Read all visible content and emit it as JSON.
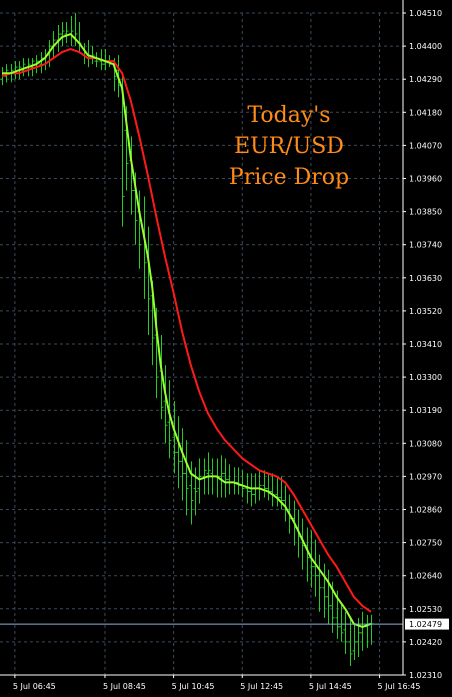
{
  "chart_data": {
    "type": "line",
    "title_lines": [
      "Today's",
      "EUR/USD",
      "Price Drop"
    ],
    "current_price_label": "1.02479",
    "y_tick_labels": [
      "1.04510",
      "1.04400",
      "1.04290",
      "1.04180",
      "1.04070",
      "1.03960",
      "1.03850",
      "1.03740",
      "1.03630",
      "1.03520",
      "1.03410",
      "1.03300",
      "1.03190",
      "1.03080",
      "1.02970",
      "1.02860",
      "1.02750",
      "1.02640",
      "1.02530",
      "1.02420",
      "1.02310"
    ],
    "x_tick_labels": [
      "5 Jul 06:45",
      "5 Jul 08:45",
      "5 Jul 10:45",
      "5 Jul 12:45",
      "5 Jul 14:45",
      "5 Jul 16:45"
    ],
    "ylim": [
      1.0231,
      1.0451
    ],
    "xlim": [
      0,
      93
    ],
    "x_ticks": [
      3,
      24,
      40,
      56,
      72,
      88
    ],
    "grid": true,
    "colors": {
      "background": "#000000",
      "grid": "#3a4a5a",
      "bars": "#22cc22",
      "fast_ma": "#99ff33",
      "slow_ma": "#ff1a1a",
      "title": "#ff8c1a",
      "axis_text": "#ffffff",
      "price_line": "#8ab4d8"
    },
    "bars": [
      [
        0,
        1.0433,
        1.0427,
        1.0429,
        1.0431
      ],
      [
        1,
        1.0434,
        1.0428,
        1.043,
        1.0432
      ],
      [
        2,
        1.0434,
        1.0428,
        1.0431,
        1.0432
      ],
      [
        3,
        1.0435,
        1.0429,
        1.0431,
        1.0433
      ],
      [
        4,
        1.0435,
        1.0429,
        1.0432,
        1.0433
      ],
      [
        5,
        1.0436,
        1.043,
        1.0432,
        1.0434
      ],
      [
        6,
        1.0436,
        1.043,
        1.0433,
        1.0434
      ],
      [
        7,
        1.0436,
        1.043,
        1.0433,
        1.0435
      ],
      [
        8,
        1.0437,
        1.0431,
        1.0434,
        1.0435
      ],
      [
        9,
        1.0438,
        1.0431,
        1.0434,
        1.0436
      ],
      [
        10,
        1.0439,
        1.0432,
        1.0436,
        1.0437
      ],
      [
        11,
        1.0442,
        1.0433,
        1.0437,
        1.044
      ],
      [
        12,
        1.0445,
        1.0436,
        1.044,
        1.0442
      ],
      [
        13,
        1.0447,
        1.0438,
        1.0442,
        1.0444
      ],
      [
        14,
        1.0448,
        1.044,
        1.0444,
        1.0445
      ],
      [
        15,
        1.0448,
        1.0441,
        1.0444,
        1.0445
      ],
      [
        16,
        1.045,
        1.044,
        1.0444,
        1.0445
      ],
      [
        17,
        1.0451,
        1.044,
        1.0443,
        1.0444
      ],
      [
        18,
        1.0448,
        1.0438,
        1.0441,
        1.0441
      ],
      [
        19,
        1.0441,
        1.0434,
        1.0437,
        1.0438
      ],
      [
        20,
        1.0442,
        1.0433,
        1.0436,
        1.0436
      ],
      [
        21,
        1.044,
        1.0434,
        1.0436,
        1.0437
      ],
      [
        22,
        1.0438,
        1.0433,
        1.0435,
        1.0435
      ],
      [
        23,
        1.0439,
        1.0432,
        1.0435,
        1.0434
      ],
      [
        24,
        1.0439,
        1.0432,
        1.0434,
        1.0435
      ],
      [
        25,
        1.0437,
        1.0433,
        1.0435,
        1.0434
      ],
      [
        26,
        1.0436,
        1.0425,
        1.0434,
        1.043
      ],
      [
        27,
        1.0437,
        1.0423,
        1.0432,
        1.0427
      ],
      [
        28,
        1.043,
        1.038,
        1.0427,
        1.039
      ],
      [
        29,
        1.042,
        1.0392,
        1.0412,
        1.0401
      ],
      [
        30,
        1.041,
        1.0384,
        1.0402,
        1.0392
      ],
      [
        31,
        1.0398,
        1.0374,
        1.0392,
        1.0382
      ],
      [
        32,
        1.0392,
        1.0366,
        1.0385,
        1.0374
      ],
      [
        33,
        1.039,
        1.0356,
        1.0378,
        1.0368
      ],
      [
        34,
        1.038,
        1.0344,
        1.037,
        1.0356
      ],
      [
        35,
        1.0362,
        1.0334,
        1.0357,
        1.0343
      ],
      [
        36,
        1.0353,
        1.0323,
        1.0344,
        1.033
      ],
      [
        37,
        1.0344,
        1.0316,
        1.0332,
        1.032
      ],
      [
        38,
        1.0334,
        1.0308,
        1.0322,
        1.0314
      ],
      [
        39,
        1.0329,
        1.0303,
        1.0315,
        1.0309
      ],
      [
        40,
        1.0322,
        1.0298,
        1.031,
        1.0305
      ],
      [
        41,
        1.0317,
        1.0293,
        1.0305,
        1.0302
      ],
      [
        42,
        1.0313,
        1.0289,
        1.0302,
        1.0298
      ],
      [
        43,
        1.0309,
        1.0284,
        1.0298,
        1.0293
      ],
      [
        44,
        1.0302,
        1.0281,
        1.0294,
        1.0289
      ],
      [
        45,
        1.03,
        1.0284,
        1.0293,
        1.0292
      ],
      [
        46,
        1.0303,
        1.0288,
        1.0293,
        1.0297
      ],
      [
        47,
        1.0303,
        1.0291,
        1.0297,
        1.0299
      ],
      [
        48,
        1.0305,
        1.0291,
        1.0298,
        1.0299
      ],
      [
        49,
        1.0303,
        1.0291,
        1.0298,
        1.0297
      ],
      [
        50,
        1.0303,
        1.029,
        1.0297,
        1.0297
      ],
      [
        51,
        1.0304,
        1.029,
        1.0297,
        1.0298
      ],
      [
        52,
        1.0303,
        1.029,
        1.0298,
        1.0296
      ],
      [
        53,
        1.0301,
        1.0291,
        1.0296,
        1.0295
      ],
      [
        54,
        1.03,
        1.0291,
        1.0295,
        1.0295
      ],
      [
        55,
        1.03,
        1.0291,
        1.0295,
        1.0294
      ],
      [
        56,
        1.0299,
        1.029,
        1.0294,
        1.0293
      ],
      [
        57,
        1.0298,
        1.0288,
        1.0293,
        1.0292
      ],
      [
        58,
        1.0298,
        1.0287,
        1.0292,
        1.0291
      ],
      [
        59,
        1.0298,
        1.0288,
        1.0291,
        1.0293
      ],
      [
        60,
        1.0299,
        1.0289,
        1.0293,
        1.0294
      ],
      [
        61,
        1.0299,
        1.029,
        1.0294,
        1.0293
      ],
      [
        62,
        1.0298,
        1.0289,
        1.0293,
        1.0292
      ],
      [
        63,
        1.0298,
        1.0287,
        1.0292,
        1.0291
      ],
      [
        64,
        1.0297,
        1.0287,
        1.0291,
        1.029
      ],
      [
        65,
        1.0297,
        1.0286,
        1.029,
        1.0289
      ],
      [
        66,
        1.0294,
        1.0282,
        1.0289,
        1.0286
      ],
      [
        67,
        1.0291,
        1.0278,
        1.0286,
        1.0283
      ],
      [
        68,
        1.0289,
        1.0274,
        1.0283,
        1.028
      ],
      [
        69,
        1.0286,
        1.027,
        1.028,
        1.0277
      ],
      [
        70,
        1.0283,
        1.0266,
        1.0277,
        1.0274
      ],
      [
        71,
        1.028,
        1.0262,
        1.0274,
        1.027
      ],
      [
        72,
        1.0279,
        1.026,
        1.0271,
        1.0267
      ],
      [
        73,
        1.0276,
        1.0257,
        1.0267,
        1.0264
      ],
      [
        74,
        1.0271,
        1.0252,
        1.0264,
        1.026
      ],
      [
        75,
        1.0268,
        1.025,
        1.026,
        1.0257
      ],
      [
        76,
        1.0266,
        1.0248,
        1.0257,
        1.0254
      ],
      [
        77,
        1.0262,
        1.0245,
        1.0254,
        1.025
      ],
      [
        78,
        1.0259,
        1.0243,
        1.025,
        1.0247
      ],
      [
        79,
        1.0255,
        1.0242,
        1.0247,
        1.0245
      ],
      [
        80,
        1.0252,
        1.0238,
        1.0246,
        1.0242
      ],
      [
        81,
        1.025,
        1.0234,
        1.0242,
        1.0238
      ],
      [
        82,
        1.0248,
        1.0236,
        1.0239,
        1.0242
      ],
      [
        83,
        1.025,
        1.0237,
        1.0242,
        1.0245
      ],
      [
        84,
        1.0252,
        1.0239,
        1.0245,
        1.0247
      ],
      [
        85,
        1.0251,
        1.024,
        1.0247,
        1.0248
      ],
      [
        86,
        1.0251,
        1.0241,
        1.0248,
        1.0248
      ]
    ],
    "series": [
      {
        "points": [
          [
            0,
            1.0431
          ],
          [
            2,
            1.0431
          ],
          [
            4,
            1.0432
          ],
          [
            6,
            1.0433
          ],
          [
            8,
            1.0434
          ],
          [
            10,
            1.0436
          ],
          [
            12,
            1.044
          ],
          [
            14,
            1.0443
          ],
          [
            16,
            1.0444
          ],
          [
            18,
            1.0441
          ],
          [
            20,
            1.0437
          ],
          [
            22,
            1.0436
          ],
          [
            24,
            1.0435
          ],
          [
            26,
            1.0434
          ],
          [
            28,
            1.0426
          ],
          [
            30,
            1.0403
          ],
          [
            32,
            1.0385
          ],
          [
            34,
            1.037
          ],
          [
            35,
            1.036
          ],
          [
            36,
            1.0346
          ],
          [
            37,
            1.0334
          ],
          [
            38,
            1.0325
          ],
          [
            39,
            1.0318
          ],
          [
            40,
            1.0313
          ],
          [
            42,
            1.0305
          ],
          [
            44,
            1.0298
          ],
          [
            46,
            1.0296
          ],
          [
            48,
            1.0297
          ],
          [
            50,
            1.0297
          ],
          [
            52,
            1.0295
          ],
          [
            54,
            1.0295
          ],
          [
            56,
            1.0294
          ],
          [
            58,
            1.0293
          ],
          [
            60,
            1.0293
          ],
          [
            62,
            1.0292
          ],
          [
            64,
            1.029
          ],
          [
            66,
            1.0287
          ],
          [
            68,
            1.0282
          ],
          [
            70,
            1.0276
          ],
          [
            72,
            1.027
          ],
          [
            74,
            1.0266
          ],
          [
            76,
            1.0262
          ],
          [
            78,
            1.0257
          ],
          [
            80,
            1.0253
          ],
          [
            82,
            1.0248
          ],
          [
            84,
            1.0247
          ],
          [
            86,
            1.0248
          ]
        ]
      },
      {
        "points": [
          [
            0,
            1.043
          ],
          [
            2,
            1.0431
          ],
          [
            4,
            1.0431
          ],
          [
            6,
            1.0432
          ],
          [
            8,
            1.0433
          ],
          [
            10,
            1.0434
          ],
          [
            12,
            1.0436
          ],
          [
            14,
            1.0438
          ],
          [
            16,
            1.0439
          ],
          [
            18,
            1.0438
          ],
          [
            20,
            1.0436
          ],
          [
            22,
            1.0436
          ],
          [
            24,
            1.0435
          ],
          [
            26,
            1.0435
          ],
          [
            28,
            1.0431
          ],
          [
            30,
            1.0422
          ],
          [
            32,
            1.041
          ],
          [
            34,
            1.0397
          ],
          [
            36,
            1.0383
          ],
          [
            38,
            1.037
          ],
          [
            40,
            1.0358
          ],
          [
            42,
            1.0345
          ],
          [
            44,
            1.0334
          ],
          [
            46,
            1.0325
          ],
          [
            48,
            1.0318
          ],
          [
            50,
            1.0313
          ],
          [
            52,
            1.0309
          ],
          [
            54,
            1.0306
          ],
          [
            56,
            1.0303
          ],
          [
            58,
            1.0301
          ],
          [
            60,
            1.0299
          ],
          [
            62,
            1.0298
          ],
          [
            64,
            1.0297
          ],
          [
            66,
            1.0295
          ],
          [
            68,
            1.0291
          ],
          [
            70,
            1.0286
          ],
          [
            72,
            1.0281
          ],
          [
            74,
            1.0276
          ],
          [
            76,
            1.0271
          ],
          [
            78,
            1.0267
          ],
          [
            80,
            1.0262
          ],
          [
            82,
            1.0257
          ],
          [
            84,
            1.0254
          ],
          [
            86,
            1.0252
          ]
        ]
      }
    ]
  }
}
